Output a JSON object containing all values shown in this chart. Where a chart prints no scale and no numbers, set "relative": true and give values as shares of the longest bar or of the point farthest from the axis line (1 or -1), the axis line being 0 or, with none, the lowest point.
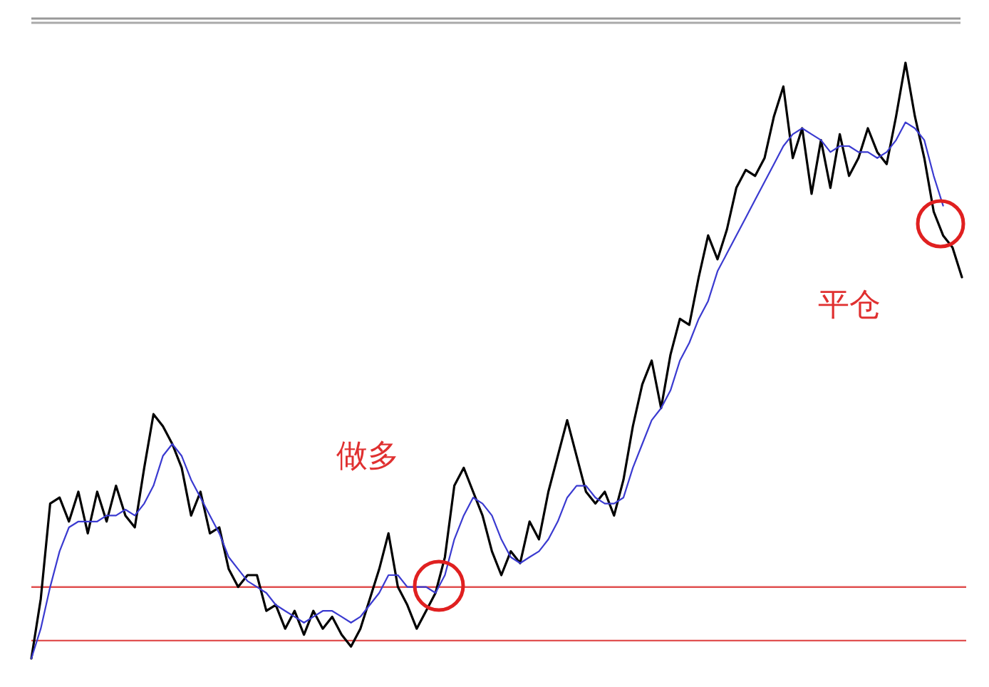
{
  "chart_data": {
    "type": "line",
    "relative": true,
    "categories": [
      null,
      null,
      null,
      null,
      null,
      null,
      null,
      null,
      null,
      null,
      null,
      null,
      null,
      null,
      null,
      null,
      null,
      null,
      null,
      null,
      null,
      null,
      null,
      null,
      null,
      null,
      null,
      null,
      null,
      null,
      null,
      null,
      null,
      null,
      null,
      null,
      null,
      null,
      null,
      null,
      null,
      null,
      null,
      null,
      null,
      null,
      null,
      null,
      null,
      null,
      null,
      null,
      null,
      null,
      null,
      null,
      null,
      null,
      null,
      null,
      null,
      null,
      null,
      null,
      null,
      null,
      null,
      null,
      null,
      null,
      null,
      null,
      null,
      null,
      null,
      null,
      null,
      null,
      null,
      null,
      null,
      null,
      null,
      null,
      null,
      null,
      null,
      null,
      null,
      null,
      null,
      null,
      null,
      null,
      null,
      null,
      null,
      null,
      null,
      null
    ],
    "series": [
      {
        "color": "#000000",
        "values": [
          0,
          0.1,
          0.26,
          0.27,
          0.23,
          0.28,
          0.21,
          0.28,
          0.23,
          0.29,
          0.24,
          0.22,
          0.32,
          0.41,
          0.39,
          0.36,
          0.32,
          0.24,
          0.28,
          0.21,
          0.22,
          0.15,
          0.12,
          0.14,
          0.14,
          0.08,
          0.09,
          0.05,
          0.08,
          0.04,
          0.08,
          0.05,
          0.07,
          0.04,
          0.02,
          0.05,
          0.1,
          0.15,
          0.21,
          0.12,
          0.09,
          0.05,
          0.08,
          0.11,
          0.17,
          0.29,
          0.32,
          0.28,
          0.24,
          0.18,
          0.14,
          0.18,
          0.16,
          0.23,
          0.2,
          0.28,
          0.34,
          0.4,
          0.34,
          0.28,
          0.26,
          0.28,
          0.24,
          0.3,
          0.39,
          0.46,
          0.5,
          0.42,
          0.51,
          0.57,
          0.56,
          0.64,
          0.71,
          0.67,
          0.72,
          0.79,
          0.82,
          0.81,
          0.84,
          0.91,
          0.96,
          0.84,
          0.89,
          0.78,
          0.87,
          0.79,
          0.88,
          0.81,
          0.84,
          0.89,
          0.85,
          0.83,
          0.91,
          1.0,
          0.91,
          0.84,
          0.75,
          0.71,
          0.69,
          0.64
        ]
      },
      {
        "color": "#3a3ad0",
        "values": [
          0,
          0.05,
          0.12,
          0.18,
          0.22,
          0.23,
          0.23,
          0.23,
          0.24,
          0.24,
          0.25,
          0.24,
          0.26,
          0.29,
          0.34,
          0.36,
          0.34,
          0.3,
          0.27,
          0.24,
          0.21,
          0.17,
          0.15,
          0.13,
          0.12,
          0.11,
          0.09,
          0.08,
          0.07,
          0.06,
          0.07,
          0.08,
          0.08,
          0.07,
          0.06,
          0.07,
          0.09,
          0.11,
          0.14,
          0.14,
          0.12,
          0.12,
          0.12,
          0.11,
          0.14,
          0.2,
          0.24,
          0.27,
          0.26,
          0.24,
          0.2,
          0.17,
          0.16,
          0.17,
          0.18,
          0.2,
          0.23,
          0.27,
          0.29,
          0.29,
          0.27,
          0.26,
          0.26,
          0.27,
          0.32,
          0.36,
          0.4,
          0.42,
          0.45,
          0.5,
          0.53,
          0.57,
          0.6,
          0.65,
          0.68,
          0.71,
          0.74,
          0.77,
          0.8,
          0.83,
          0.86,
          0.88,
          0.89,
          0.88,
          0.87,
          0.85,
          0.86,
          0.86,
          0.85,
          0.85,
          0.84,
          0.85,
          0.87,
          0.9,
          0.89,
          0.87,
          0.81,
          0.76,
          null,
          null
        ]
      }
    ],
    "ref_lines": [
      {
        "axis": "y",
        "value": 0.12,
        "color": "#e05050"
      },
      {
        "axis": "y",
        "value": 0.03,
        "color": "#e05050"
      }
    ],
    "annotations": [
      "做多",
      "平仓"
    ]
  }
}
